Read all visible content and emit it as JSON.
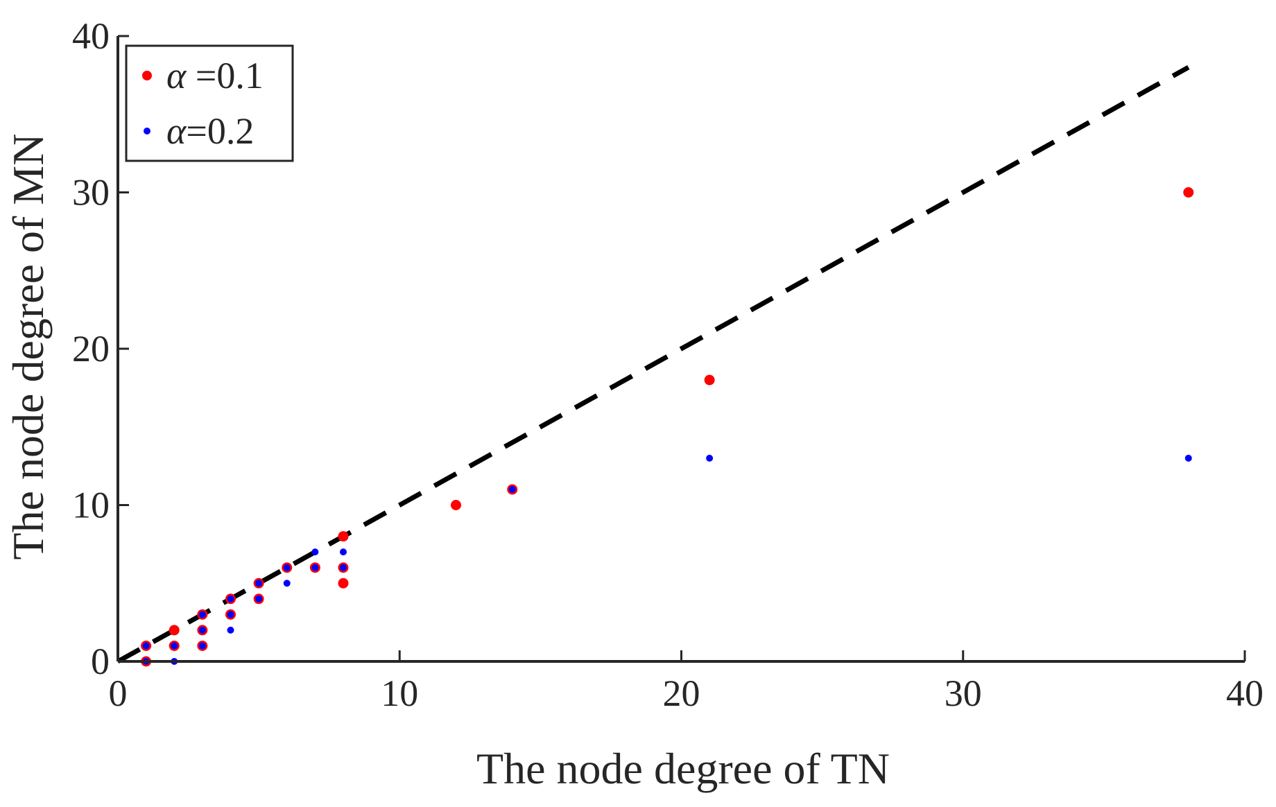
{
  "chart_data": {
    "type": "scatter",
    "title": "",
    "xlabel": "The node degree of TN",
    "ylabel": "The node degree of MN",
    "xlim": [
      0,
      40
    ],
    "ylim": [
      0,
      40
    ],
    "xticks": [
      0,
      10,
      20,
      30,
      40
    ],
    "yticks": [
      0,
      10,
      20,
      30,
      40
    ],
    "xtick_labels": [
      "0",
      "10",
      "20",
      "30",
      "40"
    ],
    "ytick_labels": [
      "0",
      "10",
      "20",
      "30",
      "40"
    ],
    "grid": false,
    "legend_position": "top-left",
    "series": [
      {
        "name": "α =0.1",
        "legend_symbol": "α",
        "legend_value": " =0.1",
        "color": "#ff0000",
        "marker": "large-dot",
        "x": [
          1,
          1,
          2,
          2,
          3,
          3,
          3,
          4,
          4,
          5,
          5,
          6,
          7,
          8,
          8,
          8,
          12,
          14,
          21,
          38
        ],
        "y": [
          0,
          1,
          1,
          2,
          1,
          2,
          3,
          3,
          4,
          4,
          5,
          6,
          6,
          5,
          6,
          8,
          10,
          11,
          18,
          30
        ]
      },
      {
        "name": "α=0.2",
        "legend_symbol": "α",
        "legend_value": "=0.2",
        "color": "#0000ff",
        "marker": "small-dot",
        "x": [
          1,
          1,
          2,
          2,
          3,
          3,
          3,
          4,
          4,
          4,
          5,
          5,
          6,
          6,
          7,
          7,
          8,
          8,
          14,
          21,
          38
        ],
        "y": [
          0,
          1,
          0,
          1,
          1,
          2,
          3,
          2,
          3,
          4,
          4,
          5,
          5,
          6,
          6,
          7,
          6,
          7,
          11,
          13,
          13
        ]
      }
    ],
    "reference_line": {
      "name": "y = x",
      "color": "#000000",
      "style": "dashed",
      "x": [
        0,
        38
      ],
      "y": [
        0,
        38
      ]
    }
  }
}
